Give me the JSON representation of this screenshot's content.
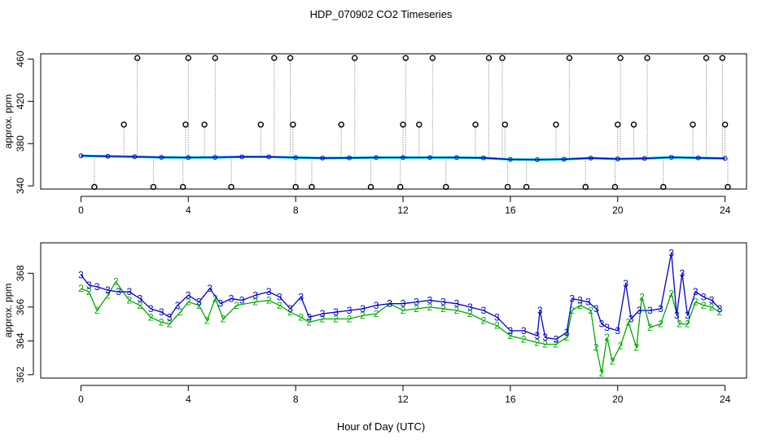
{
  "figure": {
    "title": "HDP_070902  CO2 Timeseries",
    "xlabel": "Hour of Day (UTC)"
  },
  "colors": {
    "frame": "#000000",
    "series2": "#00aa00",
    "series3": "#0000cc",
    "stick": "#999999",
    "fill": "#00cccc"
  },
  "chart_data": [
    {
      "type": "scatter",
      "ylabel": "approx. ppm",
      "xlim": [
        -1.5,
        24.8
      ],
      "ylim": [
        337,
        465
      ],
      "xticks": [
        0,
        4,
        8,
        12,
        16,
        20,
        24
      ],
      "yticks": [
        340,
        380,
        420,
        460
      ],
      "baseline": [
        [
          0.0,
          368.5
        ],
        [
          1.0,
          368.0
        ],
        [
          2.0,
          367.6
        ],
        [
          3.0,
          367.0
        ],
        [
          4.0,
          366.8
        ],
        [
          5.0,
          367.0
        ],
        [
          6.0,
          367.5
        ],
        [
          7.0,
          367.5
        ],
        [
          8.0,
          366.8
        ],
        [
          9.0,
          366.3
        ],
        [
          10.0,
          366.5
        ],
        [
          11.0,
          366.8
        ],
        [
          12.0,
          366.8
        ],
        [
          13.0,
          366.8
        ],
        [
          14.0,
          366.8
        ],
        [
          15.0,
          366.5
        ],
        [
          16.0,
          365.0
        ],
        [
          17.0,
          364.8
        ],
        [
          18.0,
          365.2
        ],
        [
          19.0,
          366.3
        ],
        [
          20.0,
          365.5
        ],
        [
          21.0,
          366.0
        ],
        [
          22.0,
          367.0
        ],
        [
          23.0,
          366.5
        ],
        [
          24.0,
          366.0
        ]
      ],
      "outliers": [
        [
          0.5,
          339
        ],
        [
          1.6,
          398
        ],
        [
          2.1,
          461
        ],
        [
          2.7,
          339
        ],
        [
          3.8,
          339
        ],
        [
          3.9,
          398
        ],
        [
          4.0,
          461
        ],
        [
          4.6,
          398
        ],
        [
          5.0,
          461
        ],
        [
          5.6,
          339
        ],
        [
          6.7,
          398
        ],
        [
          7.2,
          461
        ],
        [
          7.8,
          461
        ],
        [
          7.9,
          398
        ],
        [
          8.0,
          339
        ],
        [
          8.6,
          339
        ],
        [
          9.7,
          398
        ],
        [
          10.2,
          461
        ],
        [
          10.8,
          339
        ],
        [
          11.9,
          339
        ],
        [
          12.0,
          398
        ],
        [
          12.1,
          461
        ],
        [
          12.6,
          398
        ],
        [
          13.1,
          461
        ],
        [
          13.6,
          339
        ],
        [
          14.7,
          398
        ],
        [
          15.2,
          461
        ],
        [
          15.7,
          461
        ],
        [
          15.8,
          398
        ],
        [
          15.9,
          339
        ],
        [
          16.6,
          339
        ],
        [
          17.7,
          398
        ],
        [
          18.2,
          461
        ],
        [
          18.8,
          339
        ],
        [
          19.9,
          339
        ],
        [
          20.0,
          398
        ],
        [
          20.1,
          461
        ],
        [
          20.6,
          398
        ],
        [
          21.1,
          461
        ],
        [
          21.7,
          339
        ],
        [
          22.8,
          398
        ],
        [
          23.3,
          461
        ],
        [
          23.9,
          461
        ],
        [
          24.0,
          398
        ],
        [
          24.1,
          339
        ]
      ]
    },
    {
      "type": "line",
      "ylabel": "approx. ppm",
      "xlim": [
        -1.5,
        24.8
      ],
      "ylim": [
        361.8,
        369.8
      ],
      "xticks": [
        0,
        4,
        8,
        12,
        16,
        20,
        24
      ],
      "yticks": [
        362,
        364,
        366,
        368
      ],
      "series": [
        {
          "name": "3",
          "points": [
            [
              0.0,
              367.9
            ],
            [
              0.3,
              367.3
            ],
            [
              0.6,
              367.2
            ],
            [
              1.0,
              367.0
            ],
            [
              1.4,
              366.9
            ],
            [
              1.8,
              366.9
            ],
            [
              2.2,
              366.5
            ],
            [
              2.6,
              365.9
            ],
            [
              3.0,
              365.7
            ],
            [
              3.3,
              365.4
            ],
            [
              3.6,
              366.1
            ],
            [
              4.0,
              366.7
            ],
            [
              4.4,
              366.3
            ],
            [
              4.8,
              367.1
            ],
            [
              5.2,
              366.2
            ],
            [
              5.6,
              366.5
            ],
            [
              6.0,
              366.4
            ],
            [
              6.5,
              366.7
            ],
            [
              7.0,
              366.9
            ],
            [
              7.4,
              366.6
            ],
            [
              7.8,
              365.9
            ],
            [
              8.2,
              366.6
            ],
            [
              8.5,
              365.4
            ],
            [
              9.0,
              365.6
            ],
            [
              9.5,
              365.7
            ],
            [
              10.0,
              365.8
            ],
            [
              10.5,
              365.9
            ],
            [
              11.0,
              366.1
            ],
            [
              11.5,
              366.2
            ],
            [
              12.0,
              366.2
            ],
            [
              12.5,
              366.3
            ],
            [
              13.0,
              366.4
            ],
            [
              13.5,
              366.3
            ],
            [
              14.0,
              366.2
            ],
            [
              14.5,
              366.0
            ],
            [
              15.0,
              365.8
            ],
            [
              15.5,
              365.4
            ],
            [
              16.0,
              364.6
            ],
            [
              16.5,
              364.6
            ],
            [
              17.0,
              364.3
            ],
            [
              17.1,
              365.8
            ],
            [
              17.3,
              364.2
            ],
            [
              17.7,
              364.1
            ],
            [
              18.1,
              364.5
            ],
            [
              18.3,
              366.5
            ],
            [
              18.6,
              366.4
            ],
            [
              18.9,
              366.3
            ],
            [
              19.2,
              365.9
            ],
            [
              19.4,
              365.0
            ],
            [
              19.6,
              364.8
            ],
            [
              20.0,
              364.6
            ],
            [
              20.3,
              367.4
            ],
            [
              20.5,
              365.3
            ],
            [
              20.8,
              365.8
            ],
            [
              21.2,
              365.8
            ],
            [
              21.6,
              365.9
            ],
            [
              22.0,
              369.2
            ],
            [
              22.2,
              365.5
            ],
            [
              22.4,
              368.0
            ],
            [
              22.6,
              365.5
            ],
            [
              22.9,
              366.9
            ],
            [
              23.2,
              366.6
            ],
            [
              23.5,
              366.4
            ],
            [
              23.8,
              365.9
            ]
          ]
        },
        {
          "name": "2",
          "points": [
            [
              0.0,
              367.1
            ],
            [
              0.3,
              366.9
            ],
            [
              0.6,
              365.8
            ],
            [
              1.0,
              366.7
            ],
            [
              1.3,
              367.5
            ],
            [
              1.8,
              366.4
            ],
            [
              2.2,
              366.1
            ],
            [
              2.6,
              365.4
            ],
            [
              3.0,
              365.1
            ],
            [
              3.3,
              365.0
            ],
            [
              3.7,
              365.7
            ],
            [
              4.0,
              366.3
            ],
            [
              4.4,
              366.1
            ],
            [
              4.7,
              365.2
            ],
            [
              5.0,
              366.5
            ],
            [
              5.3,
              365.3
            ],
            [
              5.8,
              366.1
            ],
            [
              6.5,
              366.3
            ],
            [
              7.0,
              366.4
            ],
            [
              7.4,
              366.1
            ],
            [
              7.8,
              365.7
            ],
            [
              8.2,
              365.4
            ],
            [
              8.5,
              365.1
            ],
            [
              9.0,
              365.3
            ],
            [
              9.5,
              365.3
            ],
            [
              10.0,
              365.3
            ],
            [
              10.5,
              365.5
            ],
            [
              11.0,
              365.6
            ],
            [
              11.5,
              366.2
            ],
            [
              12.0,
              365.8
            ],
            [
              12.5,
              365.9
            ],
            [
              13.0,
              366.0
            ],
            [
              13.5,
              365.9
            ],
            [
              14.0,
              365.8
            ],
            [
              14.5,
              365.6
            ],
            [
              15.0,
              365.2
            ],
            [
              15.5,
              364.9
            ],
            [
              16.0,
              364.3
            ],
            [
              16.5,
              364.1
            ],
            [
              17.0,
              363.9
            ],
            [
              17.3,
              363.8
            ],
            [
              17.7,
              363.8
            ],
            [
              18.1,
              364.2
            ],
            [
              18.3,
              365.8
            ],
            [
              18.6,
              366.1
            ],
            [
              19.0,
              365.8
            ],
            [
              19.2,
              363.6
            ],
            [
              19.4,
              362.1
            ],
            [
              19.6,
              364.2
            ],
            [
              19.8,
              362.8
            ],
            [
              20.1,
              363.7
            ],
            [
              20.4,
              365.1
            ],
            [
              20.7,
              363.6
            ],
            [
              20.9,
              366.6
            ],
            [
              21.2,
              364.8
            ],
            [
              21.6,
              365.0
            ],
            [
              22.0,
              366.8
            ],
            [
              22.3,
              365.0
            ],
            [
              22.6,
              365.0
            ],
            [
              22.9,
              366.3
            ],
            [
              23.2,
              366.1
            ],
            [
              23.5,
              366.0
            ],
            [
              23.8,
              365.7
            ]
          ]
        }
      ]
    }
  ]
}
